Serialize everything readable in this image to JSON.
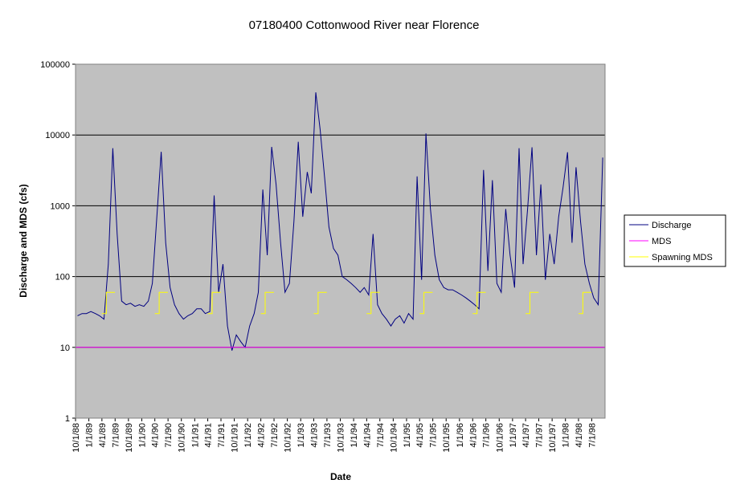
{
  "chart_data": {
    "type": "line",
    "title": "07180400 Cottonwood River near Florence",
    "x_label": "Date",
    "y_label": "Discharge and MDS (cfs)",
    "log_scale_y": true,
    "grid": true,
    "legend_position": "right",
    "background": "#c0c0c0",
    "xlim": [
      "10/1/88",
      "10/1/98"
    ],
    "xticks": [
      "10/1/88",
      "1/1/89",
      "4/1/89",
      "7/1/89",
      "10/1/89",
      "1/1/90",
      "4/1/90",
      "7/1/90",
      "10/1/90",
      "1/1/91",
      "4/1/91",
      "7/1/91",
      "10/1/91",
      "1/1/92",
      "4/1/92",
      "7/1/92",
      "10/1/92",
      "1/1/93",
      "4/1/93",
      "7/1/93",
      "10/1/93",
      "1/1/94",
      "4/1/94",
      "7/1/94",
      "10/1/94",
      "1/1/95",
      "4/1/95",
      "7/1/95",
      "10/1/95",
      "1/1/96",
      "4/1/96",
      "7/1/96",
      "10/1/96",
      "1/1/97",
      "4/1/97",
      "7/1/97",
      "10/1/97",
      "1/1/98",
      "4/1/98",
      "7/1/98"
    ],
    "ylim": [
      1,
      100000
    ],
    "yticks": [
      1,
      10,
      100,
      1000,
      10000,
      100000
    ],
    "series": [
      {
        "name": "Discharge",
        "color": "#000080",
        "x": [
          "10/15/88",
          "11/15/88",
          "12/15/88",
          "1/15/89",
          "2/15/89",
          "3/15/89",
          "4/15/89",
          "5/15/89",
          "6/15/89",
          "7/15/89",
          "8/15/89",
          "9/15/89",
          "10/15/89",
          "11/15/89",
          "12/15/89",
          "1/15/90",
          "2/15/90",
          "3/15/90",
          "4/15/90",
          "5/15/90",
          "6/15/90",
          "7/15/90",
          "8/15/90",
          "9/15/90",
          "10/15/90",
          "11/15/90",
          "12/15/90",
          "1/15/91",
          "2/15/91",
          "3/15/91",
          "4/15/91",
          "5/15/91",
          "6/15/91",
          "7/15/91",
          "8/15/91",
          "9/15/91",
          "10/15/91",
          "11/15/91",
          "12/15/91",
          "1/15/92",
          "2/15/92",
          "3/15/92",
          "4/15/92",
          "5/15/92",
          "6/15/92",
          "7/15/92",
          "8/15/92",
          "9/15/92",
          "10/15/92",
          "11/15/92",
          "12/15/92",
          "1/15/93",
          "2/15/93",
          "3/15/93",
          "4/15/93",
          "5/15/93",
          "6/15/93",
          "7/15/93",
          "8/15/93",
          "9/15/93",
          "10/15/93",
          "11/15/93",
          "12/15/93",
          "1/15/94",
          "2/15/94",
          "3/15/94",
          "4/15/94",
          "5/15/94",
          "6/15/94",
          "7/15/94",
          "8/15/94",
          "9/15/94",
          "10/15/94",
          "11/15/94",
          "12/15/94",
          "1/15/95",
          "2/15/95",
          "3/15/95",
          "4/15/95",
          "5/15/95",
          "6/15/95",
          "7/15/95",
          "8/15/95",
          "9/15/95",
          "10/15/95",
          "11/15/95",
          "12/15/95",
          "1/15/96",
          "2/15/96",
          "3/15/96",
          "4/15/96",
          "5/15/96",
          "6/15/96",
          "7/15/96",
          "8/15/96",
          "9/15/96",
          "10/15/96",
          "11/15/96",
          "12/15/96",
          "1/15/97",
          "2/15/97",
          "3/15/97",
          "4/15/97",
          "5/15/97",
          "6/15/97",
          "7/15/97",
          "8/15/97",
          "9/15/97",
          "10/15/97",
          "11/15/97",
          "12/15/97",
          "1/15/98",
          "2/15/98",
          "3/15/98",
          "4/15/98",
          "5/15/98",
          "6/15/98",
          "7/15/98",
          "8/15/98",
          "9/15/98"
        ],
        "values": [
          28,
          30,
          30,
          32,
          30,
          28,
          25,
          150,
          6500,
          400,
          45,
          40,
          42,
          38,
          40,
          38,
          45,
          80,
          700,
          5800,
          300,
          70,
          40,
          30,
          25,
          28,
          30,
          35,
          35,
          30,
          32,
          1400,
          60,
          150,
          20,
          9,
          15,
          12,
          10,
          20,
          30,
          60,
          1700,
          200,
          6800,
          2000,
          300,
          60,
          80,
          600,
          8000,
          700,
          3000,
          1500,
          40000,
          12000,
          2500,
          500,
          250,
          200,
          100,
          90,
          80,
          70,
          60,
          70,
          55,
          400,
          40,
          30,
          25,
          20,
          25,
          28,
          22,
          30,
          25,
          2600,
          90,
          10500,
          900,
          200,
          90,
          70,
          65,
          65,
          60,
          55,
          50,
          45,
          40,
          35,
          3200,
          120,
          2300,
          80,
          60,
          900,
          200,
          70,
          6500,
          150,
          900,
          6700,
          200,
          2000,
          90,
          400,
          150,
          700,
          1800,
          5700,
          300,
          3500,
          600,
          150,
          80,
          50,
          40,
          4800
        ]
      },
      {
        "name": "MDS",
        "color": "#ff00ff",
        "x": [
          "10/1/88",
          "10/1/98"
        ],
        "values": [
          10,
          10
        ]
      },
      {
        "name": "Spawning MDS",
        "color": "#ffff00",
        "x": [
          "4/1/89",
          "5/1/89",
          "5/1/89",
          "6/30/89",
          "7/1/89",
          "4/1/90",
          "5/1/90",
          "5/1/90",
          "6/30/90",
          "7/1/90",
          "4/1/91",
          "5/1/91",
          "5/1/91",
          "6/30/91",
          "7/1/91",
          "4/1/92",
          "5/1/92",
          "5/1/92",
          "6/30/92",
          "7/1/92",
          "4/1/93",
          "5/1/93",
          "5/1/93",
          "6/30/93",
          "7/1/93",
          "4/1/94",
          "5/1/94",
          "5/1/94",
          "6/30/94",
          "7/1/94",
          "4/1/95",
          "5/1/95",
          "5/1/95",
          "6/30/95",
          "7/1/95",
          "4/1/96",
          "5/1/96",
          "5/1/96",
          "6/30/96",
          "7/1/96",
          "4/1/97",
          "5/1/97",
          "5/1/97",
          "6/30/97",
          "7/1/97",
          "4/1/98",
          "5/1/98",
          "5/1/98",
          "6/30/98",
          "7/1/98"
        ],
        "values": [
          30,
          30,
          60,
          60,
          null,
          30,
          30,
          60,
          60,
          null,
          30,
          30,
          60,
          60,
          null,
          30,
          30,
          60,
          60,
          null,
          30,
          30,
          60,
          60,
          null,
          30,
          30,
          60,
          60,
          null,
          30,
          30,
          60,
          60,
          null,
          30,
          30,
          60,
          60,
          null,
          30,
          30,
          60,
          60,
          null,
          30,
          30,
          60,
          60,
          null
        ]
      }
    ]
  }
}
